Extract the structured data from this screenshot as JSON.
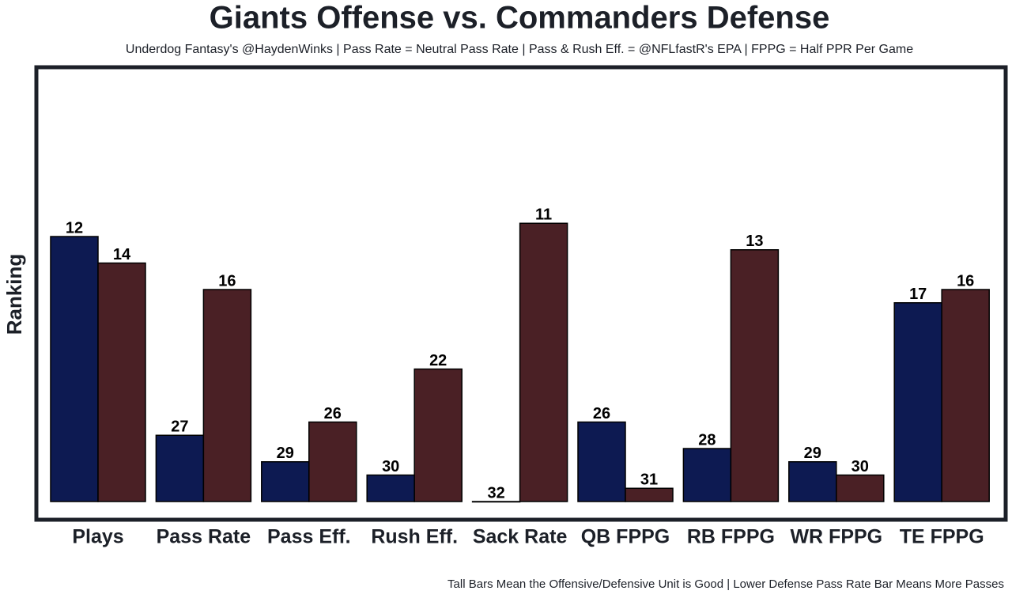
{
  "chart_data": {
    "type": "bar",
    "title": "Giants Offense vs. Commanders Defense",
    "subtitle": "Underdog Fantasy's @HaydenWinks | Pass Rate = Neutral Pass Rate | Pass & Rush Eff. = @NFLfastR's EPA | FPPG = Half PPR Per Game",
    "y_label": "Ranking",
    "note": "Tall Bars Mean the Offensive/Defensive Unit is Good | Lower Defense Pass Rate Bar Means More Passes",
    "categories": [
      "Plays",
      "Pass Rate",
      "Pass Eff.",
      "Rush Eff.",
      "Sack Rate",
      "QB FPPG",
      "RB FPPG",
      "WR FPPG",
      "TE FPPG"
    ],
    "series": [
      {
        "color": "#0d1a52",
        "values": [
          12,
          27,
          29,
          30,
          32,
          26,
          28,
          29,
          17
        ]
      },
      {
        "color": "#4a2025",
        "values": [
          14,
          16,
          26,
          22,
          11,
          31,
          13,
          30,
          16
        ]
      }
    ],
    "ylim": [
      32,
      0
    ]
  }
}
